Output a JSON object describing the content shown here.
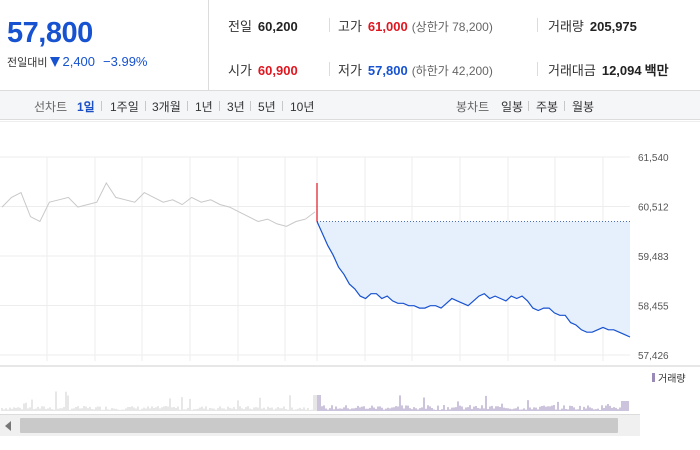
{
  "quote": {
    "price": "57,800",
    "change_label": "전일대비",
    "change_value": "2,400",
    "change_pct": "−3.99%"
  },
  "stats": {
    "prev_close": {
      "label": "전일",
      "value": "60,200"
    },
    "high": {
      "label": "고가",
      "value": "61,000",
      "sub": "(상한가 78,200)"
    },
    "volume": {
      "label": "거래량",
      "value": "205,975"
    },
    "open": {
      "label": "시가",
      "value": "60,900"
    },
    "low": {
      "label": "저가",
      "value": "57,800",
      "sub": "(하한가 42,200)"
    },
    "amount": {
      "label": "거래대금",
      "value": "12,094",
      "unit": "백만"
    }
  },
  "toolbar": {
    "line_label": "선차트",
    "periods": [
      "1일",
      "1주일",
      "3개월",
      "1년",
      "3년",
      "5년",
      "10년"
    ],
    "active_period": "1일",
    "candle_label": "봉차트",
    "candle_periods": [
      "일봉",
      "주봉",
      "월봉"
    ]
  },
  "colors": {
    "up": "#e0161f",
    "down": "#1752d0",
    "fill": "#e6effc",
    "prev_day": "#c8c8c8",
    "volume": "#9a8ab8"
  },
  "chart_data": {
    "type": "line",
    "y_ticks": [
      "61,540",
      "60,512",
      "59,483",
      "58,455",
      "57,426"
    ],
    "y_tick_values": [
      61540,
      60512,
      59483,
      58455,
      57426
    ],
    "reference_line": 60200,
    "volume_legend": "거래량",
    "series": [
      {
        "values": [
          60500,
          60700,
          60800,
          60300,
          60200,
          60600,
          60650,
          60700,
          60500,
          60550,
          60600,
          61000,
          60700,
          60650,
          60600,
          60800,
          60700,
          60600,
          60650,
          60550,
          60700,
          60600,
          60650,
          60550,
          60500,
          60400,
          60300,
          60200,
          60250,
          60150,
          60100,
          60200,
          60250,
          60400
        ]
      },
      {
        "values": [
          60200,
          59950,
          59700,
          59500,
          59250,
          59100,
          58900,
          58800,
          58650,
          58600,
          58700,
          58700,
          58600,
          58650,
          58550,
          58500,
          58500,
          58450,
          58450,
          58400,
          58400,
          58450,
          58450,
          58400,
          58500,
          58600,
          58550,
          58500,
          58450,
          58550,
          58650,
          58700,
          58600,
          58650,
          58600,
          58550,
          58650,
          58600,
          58650,
          58550,
          58400,
          58350,
          58400,
          58400,
          58300,
          58250,
          58250,
          58100,
          58050,
          57950,
          57900,
          57900,
          57950,
          58000,
          57950,
          57950,
          57900,
          57850,
          57800
        ]
      }
    ]
  }
}
